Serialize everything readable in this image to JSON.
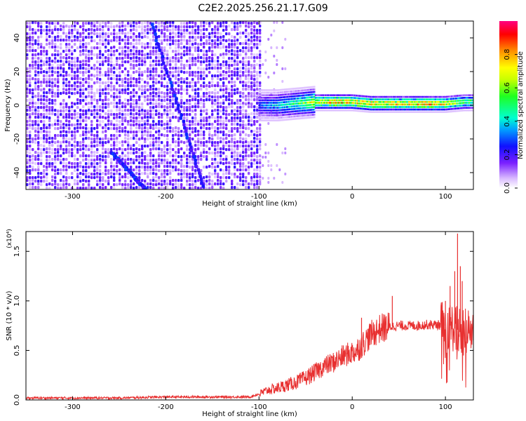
{
  "figure_title": "C2E2.2025.256.21.17.G09",
  "chart_data": [
    {
      "type": "heatmap",
      "name": "spectrogram",
      "xlabel": "Height of straight line (km)",
      "ylabel": "Frequency (Hz)",
      "xlim": [
        -350,
        130
      ],
      "ylim": [
        -50,
        50
      ],
      "x_ticks": [
        -300,
        -200,
        -100,
        0,
        100
      ],
      "x_tick_labels": [
        "-300",
        "-200",
        "-100",
        "0",
        "100"
      ],
      "y_ticks": [
        -40,
        -20,
        0,
        20,
        40
      ],
      "y_tick_labels": [
        "-40",
        "-20",
        "0",
        "20",
        "40"
      ],
      "noise_region": {
        "x_from": -350,
        "x_to": -100,
        "amplitude": "low (0.0-0.2)"
      },
      "signal_band": {
        "points": [
          {
            "x": -100,
            "freq": 0,
            "amplitude": 0.3
          },
          {
            "x": -80,
            "freq": 0,
            "amplitude": 0.4
          },
          {
            "x": -60,
            "freq": 1,
            "amplitude": 0.5
          },
          {
            "x": -40,
            "freq": 2,
            "amplitude": 0.7
          },
          {
            "x": -20,
            "freq": 2,
            "amplitude": 0.9
          },
          {
            "x": 0,
            "freq": 2,
            "amplitude": 0.8
          },
          {
            "x": 20,
            "freq": 1,
            "amplitude": 0.85
          },
          {
            "x": 40,
            "freq": 1,
            "amplitude": 0.8
          },
          {
            "x": 60,
            "freq": 1,
            "amplitude": 0.8
          },
          {
            "x": 80,
            "freq": 1,
            "amplitude": 0.9
          },
          {
            "x": 100,
            "freq": 1,
            "amplitude": 0.75
          },
          {
            "x": 120,
            "freq": 2,
            "amplitude": 0.6
          }
        ]
      },
      "streaks": [
        {
          "from": [
            -215,
            48
          ],
          "to": [
            -160,
            -48
          ]
        },
        {
          "from": [
            -258,
            -28
          ],
          "to": [
            -222,
            -50
          ]
        }
      ],
      "colorbar": {
        "label": "Normalized spectral amplitude",
        "range": [
          0.0,
          1.0
        ],
        "ticks": [
          0.0,
          0.2,
          0.4,
          0.6,
          0.8
        ],
        "tick_labels": [
          "0.0",
          "0.2",
          "0.4",
          "0.6",
          "0.8"
        ]
      }
    },
    {
      "type": "line",
      "name": "snr",
      "xlabel": "Height of straight line (km)",
      "ylabel": "SNR (10 * v/v)",
      "y_multiplier_label": "(x10⁴)",
      "xlim": [
        -350,
        130
      ],
      "ylim": [
        0,
        1.7
      ],
      "x_ticks": [
        -300,
        -200,
        -100,
        0,
        100
      ],
      "x_tick_labels": [
        "-300",
        "-200",
        "-100",
        "0",
        "100"
      ],
      "y_ticks": [
        0.0,
        0.5,
        1.0,
        1.5
      ],
      "y_tick_labels": [
        "0.0",
        "0.5",
        "1.0",
        "1.5"
      ],
      "series": [
        {
          "name": "SNR",
          "color": "#e83030",
          "x": [
            -350,
            -300,
            -250,
            -200,
            -150,
            -110,
            -100,
            -90,
            -80,
            -70,
            -60,
            -50,
            -40,
            -30,
            -20,
            -10,
            0,
            5,
            10,
            20,
            30,
            40,
            50,
            60,
            70,
            80,
            90,
            100,
            105,
            110,
            115,
            120,
            130
          ],
          "y": [
            0.02,
            0.02,
            0.02,
            0.03,
            0.03,
            0.03,
            0.06,
            0.1,
            0.12,
            0.15,
            0.18,
            0.22,
            0.28,
            0.34,
            0.38,
            0.44,
            0.48,
            0.5,
            0.55,
            0.66,
            0.72,
            0.74,
            0.75,
            0.75,
            0.75,
            0.76,
            0.76,
            0.75,
            0.75,
            0.72,
            0.7,
            0.7,
            0.7
          ]
        }
      ],
      "spikes": [
        {
          "x": 10,
          "y": 0.83
        },
        {
          "x": 43,
          "y": 1.05
        },
        {
          "x": 100,
          "y": 1.0
        },
        {
          "x": 105,
          "y": 1.15
        },
        {
          "x": 110,
          "y": 1.3
        },
        {
          "x": 113,
          "y": 1.68
        },
        {
          "x": 116,
          "y": 1.35
        },
        {
          "x": 118,
          "y": 1.2
        }
      ]
    }
  ]
}
